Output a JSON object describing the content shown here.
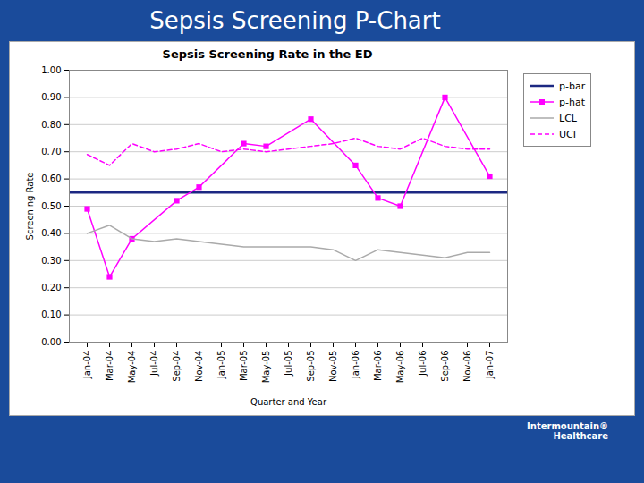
{
  "chart_data": {
    "type": "line",
    "title": "Sepsis Screening Rate in the ED",
    "x_label": "Quarter and Year",
    "y_label": "Screening Rate",
    "categories": [
      "Jan-04",
      "Mar-04",
      "May-04",
      "Jul-04",
      "Sep-04",
      "Nov-04",
      "Jan-05",
      "Mar-05",
      "May-05",
      "Jul-05",
      "Sep-05",
      "Nov-05",
      "Jan-06",
      "Mar-06",
      "May-06",
      "Jul-06",
      "Sep-06",
      "Nov-06",
      "Jan-07"
    ],
    "series": [
      {
        "name": "p-bar",
        "type": "hline",
        "color": "#1c2882",
        "line_style": "solid",
        "value": 0.55
      },
      {
        "name": "p-hat",
        "color": "#FF00FF",
        "marker": "square",
        "line_style": "solid",
        "x": [
          "Jan-04",
          "Mar-04",
          "May-04",
          "Sep-04",
          "Nov-04",
          "Mar-05",
          "May-05",
          "Sep-05",
          "Jan-06",
          "Mar-06",
          "May-06",
          "Sep-06",
          "Jan-07"
        ],
        "values": [
          0.49,
          0.24,
          0.38,
          0.52,
          0.57,
          0.73,
          0.72,
          0.82,
          0.65,
          0.53,
          0.5,
          0.9,
          0.61
        ]
      },
      {
        "name": "LCL",
        "color": "#aaaaaa",
        "line_style": "solid",
        "values": [
          0.4,
          0.43,
          0.38,
          0.37,
          0.38,
          0.37,
          0.36,
          0.35,
          0.35,
          0.35,
          0.35,
          0.34,
          0.3,
          0.34,
          0.33,
          0.32,
          0.31,
          0.33,
          0.33
        ]
      },
      {
        "name": "UCI",
        "color": "#FF00FF",
        "line_style": "dashed",
        "values": [
          0.69,
          0.65,
          0.73,
          0.7,
          0.71,
          0.73,
          0.7,
          0.71,
          0.7,
          0.71,
          0.72,
          0.73,
          0.75,
          0.72,
          0.71,
          0.75,
          0.72,
          0.71,
          0.71
        ]
      }
    ],
    "ylim": [
      0.0,
      1.0
    ],
    "yticks": [
      {
        "value": 0.0,
        "label": "0.00"
      },
      {
        "value": 0.1,
        "label": "0.10"
      },
      {
        "value": 0.2,
        "label": "0.20"
      },
      {
        "value": 0.3,
        "label": "0.30"
      },
      {
        "value": 0.4,
        "label": "0.40"
      },
      {
        "value": 0.5,
        "label": "0.50"
      },
      {
        "value": 0.6,
        "label": "0.60"
      },
      {
        "value": 0.7,
        "label": "0.70"
      },
      {
        "value": 0.8,
        "label": "0.80"
      },
      {
        "value": 0.9,
        "label": "0.90"
      },
      {
        "value": 1.0,
        "label": "1.00"
      }
    ],
    "grid": true,
    "legend": "right",
    "annotations": [
      "Sepsis Screening P-Chart",
      "Intermountain®\nHealthcare"
    ]
  }
}
